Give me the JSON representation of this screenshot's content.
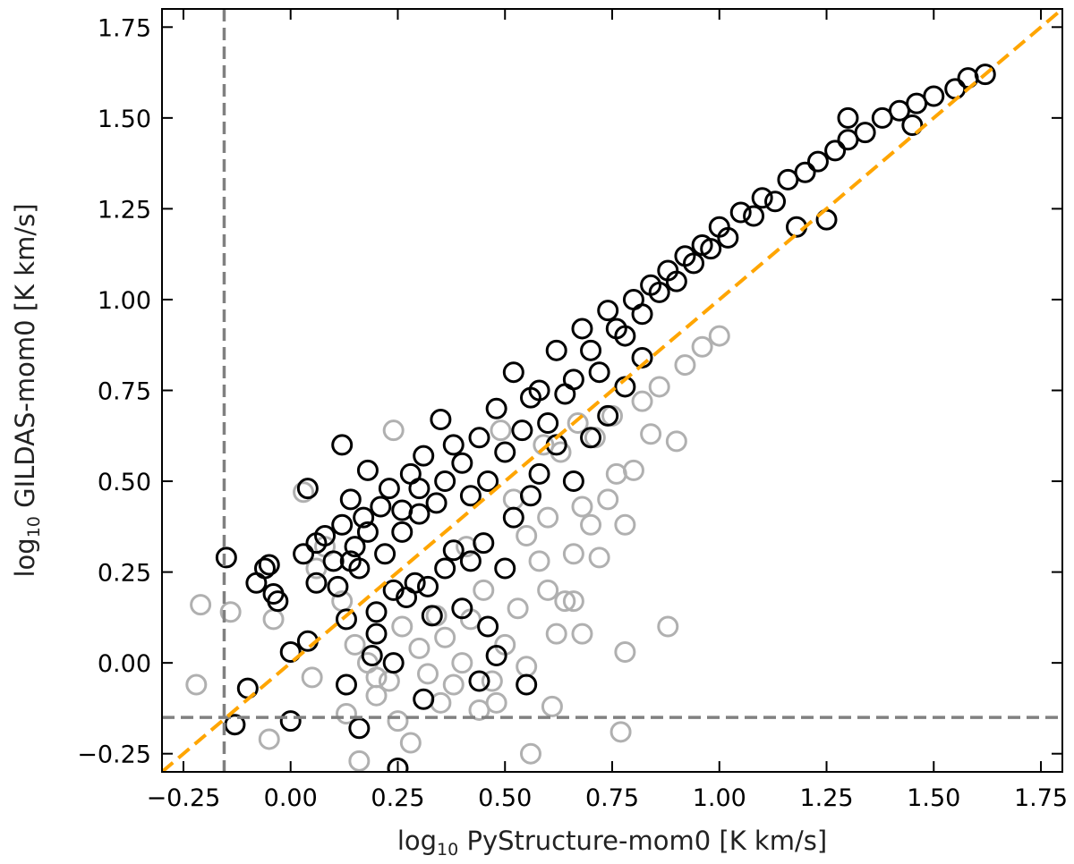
{
  "chart_data": {
    "type": "scatter",
    "title": "",
    "xlabel": {
      "prefix": "log",
      "sub": "10",
      "text": " PyStructure-mom0 [K km/s]"
    },
    "ylabel": {
      "prefix": "log",
      "sub": "10",
      "text": " GILDAS-mom0 [K km/s]"
    },
    "xlim": [
      -0.3,
      1.8
    ],
    "ylim": [
      -0.3,
      1.8
    ],
    "x_ticks": [
      -0.25,
      0.0,
      0.25,
      0.5,
      0.75,
      1.0,
      1.25,
      1.5,
      1.75
    ],
    "x_tick_labels": [
      "−0.25",
      "0.00",
      "0.25",
      "0.50",
      "0.75",
      "1.00",
      "1.25",
      "1.50",
      "1.75"
    ],
    "y_ticks": [
      -0.25,
      0.0,
      0.25,
      0.5,
      0.75,
      1.0,
      1.25,
      1.5,
      1.75
    ],
    "y_tick_labels": [
      "−0.25",
      "0.00",
      "0.25",
      "0.50",
      "0.75",
      "1.00",
      "1.25",
      "1.50",
      "1.75"
    ],
    "grid": false,
    "reference_lines": {
      "one_to_one": {
        "style": "dashed",
        "color": "#ffa500"
      },
      "x_threshold": {
        "value": -0.155,
        "style": "dashed",
        "color": "#808080"
      },
      "y_threshold": {
        "value": -0.15,
        "style": "dashed",
        "color": "#808080"
      }
    },
    "series": [
      {
        "color": "#b0b0b0",
        "marker": "open-circle",
        "points": [
          [
            -0.21,
            0.16
          ],
          [
            -0.22,
            -0.06
          ],
          [
            -0.14,
            0.14
          ],
          [
            -0.04,
            0.12
          ],
          [
            0.05,
            -0.04
          ],
          [
            -0.05,
            -0.21
          ],
          [
            0.03,
            0.47
          ],
          [
            0.06,
            0.26
          ],
          [
            0.08,
            0.32
          ],
          [
            0.12,
            0.17
          ],
          [
            0.15,
            0.05
          ],
          [
            0.18,
            0.0
          ],
          [
            0.13,
            -0.14
          ],
          [
            0.16,
            -0.27
          ],
          [
            0.2,
            -0.09
          ],
          [
            0.23,
            -0.05
          ],
          [
            0.25,
            -0.16
          ],
          [
            0.28,
            -0.22
          ],
          [
            0.24,
            0.64
          ],
          [
            0.26,
            0.1
          ],
          [
            0.3,
            0.04
          ],
          [
            0.32,
            -0.03
          ],
          [
            0.34,
            0.13
          ],
          [
            0.36,
            0.07
          ],
          [
            0.38,
            -0.06
          ],
          [
            0.4,
            0.0
          ],
          [
            0.42,
            0.12
          ],
          [
            0.45,
            0.2
          ],
          [
            0.47,
            -0.05
          ],
          [
            0.5,
            0.05
          ],
          [
            0.48,
            -0.11
          ],
          [
            0.53,
            0.15
          ],
          [
            0.55,
            -0.01
          ],
          [
            0.52,
            0.45
          ],
          [
            0.55,
            0.35
          ],
          [
            0.58,
            0.28
          ],
          [
            0.6,
            0.2
          ],
          [
            0.62,
            0.08
          ],
          [
            0.64,
            0.17
          ],
          [
            0.66,
            0.3
          ],
          [
            0.68,
            0.43
          ],
          [
            0.7,
            0.38
          ],
          [
            0.72,
            0.29
          ],
          [
            0.74,
            0.45
          ],
          [
            0.76,
            0.52
          ],
          [
            0.78,
            0.38
          ],
          [
            0.8,
            0.53
          ],
          [
            0.82,
            0.72
          ],
          [
            0.84,
            0.63
          ],
          [
            0.88,
            0.1
          ],
          [
            0.78,
            0.03
          ],
          [
            0.92,
            0.82
          ],
          [
            0.96,
            0.87
          ],
          [
            1.0,
            0.9
          ],
          [
            0.59,
            0.6
          ],
          [
            0.63,
            0.58
          ],
          [
            0.67,
            0.66
          ],
          [
            0.71,
            0.62
          ],
          [
            0.75,
            0.68
          ],
          [
            0.61,
            -0.12
          ],
          [
            0.44,
            -0.13
          ],
          [
            0.56,
            -0.25
          ],
          [
            0.86,
            0.76
          ],
          [
            0.9,
            0.61
          ],
          [
            0.77,
            -0.19
          ],
          [
            0.35,
            -0.11
          ],
          [
            0.68,
            0.08
          ],
          [
            0.66,
            0.17
          ],
          [
            0.6,
            0.4
          ],
          [
            0.49,
            0.64
          ],
          [
            0.41,
            0.32
          ],
          [
            0.2,
            -0.04
          ]
        ]
      },
      {
        "color": "#000000",
        "marker": "open-circle",
        "points": [
          [
            -0.15,
            0.29
          ],
          [
            -0.1,
            -0.07
          ],
          [
            -0.13,
            -0.17
          ],
          [
            -0.08,
            0.22
          ],
          [
            -0.06,
            0.26
          ],
          [
            -0.04,
            0.19
          ],
          [
            -0.05,
            0.27
          ],
          [
            -0.03,
            0.17
          ],
          [
            0.0,
            0.03
          ],
          [
            0.0,
            -0.16
          ],
          [
            0.04,
            0.06
          ],
          [
            0.03,
            0.3
          ],
          [
            0.04,
            0.48
          ],
          [
            0.06,
            0.33
          ],
          [
            0.08,
            0.35
          ],
          [
            0.1,
            0.28
          ],
          [
            0.11,
            0.21
          ],
          [
            0.12,
            0.38
          ],
          [
            0.12,
            0.6
          ],
          [
            0.13,
            0.12
          ],
          [
            0.13,
            -0.06
          ],
          [
            0.14,
            0.45
          ],
          [
            0.15,
            0.32
          ],
          [
            0.16,
            0.26
          ],
          [
            0.17,
            0.4
          ],
          [
            0.18,
            0.53
          ],
          [
            0.19,
            0.02
          ],
          [
            0.2,
            0.14
          ],
          [
            0.21,
            0.43
          ],
          [
            0.22,
            0.3
          ],
          [
            0.23,
            0.48
          ],
          [
            0.24,
            0.2
          ],
          [
            0.25,
            -0.29
          ],
          [
            0.26,
            0.36
          ],
          [
            0.28,
            0.52
          ],
          [
            0.29,
            0.22
          ],
          [
            0.3,
            0.41
          ],
          [
            0.31,
            0.57
          ],
          [
            0.32,
            0.21
          ],
          [
            0.34,
            0.44
          ],
          [
            0.35,
            0.67
          ],
          [
            0.36,
            0.5
          ],
          [
            0.38,
            0.31
          ],
          [
            0.4,
            0.55
          ],
          [
            0.42,
            0.46
          ],
          [
            0.44,
            0.62
          ],
          [
            0.46,
            0.5
          ],
          [
            0.48,
            0.7
          ],
          [
            0.5,
            0.58
          ],
          [
            0.52,
            0.8
          ],
          [
            0.54,
            0.64
          ],
          [
            0.56,
            0.73
          ],
          [
            0.58,
            0.75
          ],
          [
            0.6,
            0.66
          ],
          [
            0.62,
            0.86
          ],
          [
            0.64,
            0.74
          ],
          [
            0.66,
            0.78
          ],
          [
            0.68,
            0.92
          ],
          [
            0.7,
            0.86
          ],
          [
            0.72,
            0.8
          ],
          [
            0.74,
            0.97
          ],
          [
            0.76,
            0.92
          ],
          [
            0.78,
            0.9
          ],
          [
            0.8,
            1.0
          ],
          [
            0.82,
            0.96
          ],
          [
            0.84,
            1.04
          ],
          [
            0.86,
            1.02
          ],
          [
            0.88,
            1.08
          ],
          [
            0.9,
            1.05
          ],
          [
            0.92,
            1.12
          ],
          [
            0.94,
            1.1
          ],
          [
            0.96,
            1.15
          ],
          [
            0.98,
            1.14
          ],
          [
            1.0,
            1.2
          ],
          [
            1.02,
            1.17
          ],
          [
            1.05,
            1.24
          ],
          [
            1.08,
            1.23
          ],
          [
            1.1,
            1.28
          ],
          [
            1.13,
            1.27
          ],
          [
            1.16,
            1.33
          ],
          [
            1.2,
            1.35
          ],
          [
            1.23,
            1.38
          ],
          [
            1.27,
            1.41
          ],
          [
            1.3,
            1.44
          ],
          [
            1.34,
            1.46
          ],
          [
            1.38,
            1.5
          ],
          [
            1.42,
            1.52
          ],
          [
            1.46,
            1.54
          ],
          [
            1.5,
            1.56
          ],
          [
            1.55,
            1.58
          ],
          [
            1.58,
            1.61
          ],
          [
            1.62,
            1.62
          ],
          [
            1.3,
            1.5
          ],
          [
            1.45,
            1.48
          ],
          [
            1.18,
            1.2
          ],
          [
            1.25,
            1.22
          ],
          [
            0.31,
            -0.1
          ],
          [
            0.44,
            -0.05
          ],
          [
            0.55,
            -0.06
          ],
          [
            0.48,
            0.02
          ],
          [
            0.4,
            0.15
          ],
          [
            0.36,
            0.26
          ],
          [
            0.2,
            0.08
          ],
          [
            0.24,
            0.0
          ],
          [
            0.16,
            -0.18
          ],
          [
            0.42,
            0.28
          ],
          [
            0.46,
            0.1
          ],
          [
            0.5,
            0.26
          ],
          [
            0.33,
            0.13
          ],
          [
            0.27,
            0.18
          ],
          [
            0.45,
            0.33
          ],
          [
            0.52,
            0.4
          ],
          [
            0.58,
            0.52
          ],
          [
            0.66,
            0.5
          ],
          [
            0.7,
            0.62
          ],
          [
            0.74,
            0.68
          ],
          [
            0.78,
            0.76
          ],
          [
            0.82,
            0.84
          ],
          [
            0.62,
            0.6
          ],
          [
            0.56,
            0.46
          ],
          [
            0.38,
            0.6
          ],
          [
            0.3,
            0.48
          ],
          [
            0.26,
            0.42
          ],
          [
            0.18,
            0.36
          ],
          [
            0.14,
            0.28
          ],
          [
            0.06,
            0.22
          ]
        ]
      }
    ]
  }
}
